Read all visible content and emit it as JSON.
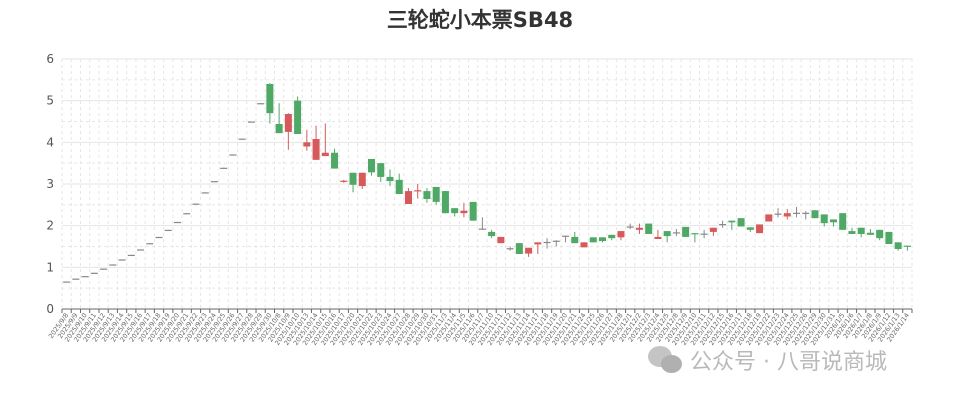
{
  "chart_data": {
    "type": "candlestick",
    "title": "三轮蛇小本票SB48",
    "ylim": [
      0,
      6
    ],
    "yticks": [
      0,
      1,
      2,
      3,
      4,
      5,
      6
    ],
    "grid": true,
    "colors": {
      "up": "#d65a5a",
      "down": "#4fa866",
      "doji": "#888888",
      "grid": "#e6e6e6",
      "axis": "#666666"
    },
    "candle_format": [
      "open",
      "close",
      "low",
      "high"
    ],
    "categories": [
      "2025/9/8",
      "2025/9/9",
      "2025/9/10",
      "2025/9/11",
      "2025/9/12",
      "2025/9/13",
      "2025/9/14",
      "2025/9/15",
      "2025/9/16",
      "2025/9/17",
      "2025/9/18",
      "2025/9/19",
      "2025/9/20",
      "2025/9/21",
      "2025/9/22",
      "2025/9/23",
      "2025/9/24",
      "2025/9/25",
      "2025/9/26",
      "2025/9/27",
      "2025/9/28",
      "2025/9/29",
      "2025/9/30",
      "2025/10/8",
      "2025/10/9",
      "2025/10/10",
      "2025/10/13",
      "2025/10/14",
      "2025/10/15",
      "2025/10/16",
      "2025/10/17",
      "2025/10/20",
      "2025/10/21",
      "2025/10/22",
      "2025/10/23",
      "2025/10/24",
      "2025/10/27",
      "2025/10/28",
      "2025/10/29",
      "2025/10/30",
      "2025/10/31",
      "2025/11/3",
      "2025/11/4",
      "2025/11/5",
      "2025/11/6",
      "2025/11/7",
      "2025/11/10",
      "2025/11/11",
      "2025/11/12",
      "2025/11/13",
      "2025/11/14",
      "2025/11/17",
      "2025/11/18",
      "2025/11/19",
      "2025/11/20",
      "2025/11/21",
      "2025/11/24",
      "2025/11/25",
      "2025/11/26",
      "2025/11/27",
      "2025/11/28",
      "2025/12/1",
      "2025/12/2",
      "2025/12/3",
      "2025/12/4",
      "2025/12/5",
      "2025/12/8",
      "2025/12/9",
      "2025/12/10",
      "2025/12/11",
      "2025/12/12",
      "2025/12/15",
      "2025/12/16",
      "2025/12/17",
      "2025/12/18",
      "2025/12/19",
      "2025/12/22",
      "2025/12/23",
      "2025/12/24",
      "2025/12/25",
      "2025/12/26",
      "2025/12/29",
      "2025/12/30",
      "2025/12/31",
      "2026/1/5",
      "2026/1/6",
      "2026/1/7",
      "2026/1/8",
      "2026/1/9",
      "2026/1/12",
      "2026/1/13",
      "2026/1/14"
    ],
    "values": [
      [
        0.65,
        0.66,
        0.65,
        0.66
      ],
      [
        0.72,
        0.73,
        0.72,
        0.73
      ],
      [
        0.78,
        0.79,
        0.78,
        0.79
      ],
      [
        0.86,
        0.87,
        0.86,
        0.87
      ],
      [
        0.96,
        0.97,
        0.96,
        0.97
      ],
      [
        1.06,
        1.07,
        1.06,
        1.07
      ],
      [
        1.18,
        1.19,
        1.18,
        1.19
      ],
      [
        1.29,
        1.3,
        1.29,
        1.3
      ],
      [
        1.42,
        1.43,
        1.42,
        1.43
      ],
      [
        1.57,
        1.58,
        1.57,
        1.58
      ],
      [
        1.72,
        1.73,
        1.72,
        1.73
      ],
      [
        1.89,
        1.9,
        1.89,
        1.9
      ],
      [
        2.08,
        2.09,
        2.08,
        2.09
      ],
      [
        2.29,
        2.3,
        2.29,
        2.3
      ],
      [
        2.52,
        2.53,
        2.52,
        2.53
      ],
      [
        2.79,
        2.8,
        2.79,
        2.8
      ],
      [
        3.06,
        3.07,
        3.06,
        3.07
      ],
      [
        3.38,
        3.39,
        3.38,
        3.39
      ],
      [
        3.7,
        3.71,
        3.7,
        3.71
      ],
      [
        4.08,
        4.09,
        4.08,
        4.09
      ],
      [
        4.49,
        4.5,
        4.49,
        4.5
      ],
      [
        4.93,
        4.94,
        4.93,
        4.94
      ],
      [
        5.4,
        4.7,
        4.45,
        5.42
      ],
      [
        4.44,
        4.22,
        4.22,
        4.94
      ],
      [
        4.25,
        4.68,
        3.82,
        4.7
      ],
      [
        5.0,
        4.2,
        4.2,
        5.1
      ],
      [
        3.9,
        4.0,
        3.8,
        4.3
      ],
      [
        3.58,
        4.08,
        3.58,
        4.4
      ],
      [
        3.67,
        3.75,
        3.67,
        4.45
      ],
      [
        3.75,
        3.37,
        3.37,
        3.85
      ],
      [
        3.05,
        3.08,
        3.03,
        3.1
      ],
      [
        3.27,
        2.98,
        2.8,
        3.27
      ],
      [
        2.95,
        3.27,
        2.88,
        3.27
      ],
      [
        3.6,
        3.28,
        3.2,
        3.6
      ],
      [
        3.5,
        3.17,
        3.05,
        3.5
      ],
      [
        3.17,
        3.07,
        2.95,
        3.35
      ],
      [
        3.1,
        2.76,
        2.76,
        3.25
      ],
      [
        2.52,
        2.83,
        2.52,
        2.9
      ],
      [
        2.83,
        2.85,
        2.65,
        3.0
      ],
      [
        2.83,
        2.64,
        2.55,
        2.9
      ],
      [
        2.93,
        2.57,
        2.5,
        2.93
      ],
      [
        2.83,
        2.3,
        2.3,
        2.83
      ],
      [
        2.42,
        2.3,
        2.22,
        2.42
      ],
      [
        2.3,
        2.36,
        2.2,
        2.55
      ],
      [
        2.57,
        2.12,
        2.12,
        2.57
      ],
      [
        1.92,
        1.93,
        1.9,
        2.2
      ],
      [
        1.85,
        1.75,
        1.7,
        1.9
      ],
      [
        1.58,
        1.73,
        1.58,
        1.73
      ],
      [
        1.45,
        1.46,
        1.4,
        1.5
      ],
      [
        1.58,
        1.32,
        1.32,
        1.58
      ],
      [
        1.33,
        1.47,
        1.25,
        1.47
      ],
      [
        1.55,
        1.6,
        1.32,
        1.6
      ],
      [
        1.6,
        1.61,
        1.45,
        1.7
      ],
      [
        1.63,
        1.64,
        1.5,
        1.65
      ],
      [
        1.75,
        1.76,
        1.6,
        1.76
      ],
      [
        1.73,
        1.58,
        1.58,
        1.85
      ],
      [
        1.48,
        1.6,
        1.48,
        1.6
      ],
      [
        1.72,
        1.6,
        1.6,
        1.72
      ],
      [
        1.72,
        1.63,
        1.6,
        1.72
      ],
      [
        1.78,
        1.7,
        1.65,
        1.78
      ],
      [
        1.72,
        1.87,
        1.65,
        1.87
      ],
      [
        1.97,
        1.98,
        1.92,
        2.05
      ],
      [
        1.9,
        1.95,
        1.8,
        2.05
      ],
      [
        2.05,
        1.8,
        1.8,
        2.05
      ],
      [
        1.68,
        1.73,
        1.68,
        1.9
      ],
      [
        1.87,
        1.75,
        1.6,
        1.87
      ],
      [
        1.83,
        1.84,
        1.75,
        1.92
      ],
      [
        1.97,
        1.73,
        1.73,
        1.97
      ],
      [
        1.82,
        1.8,
        1.6,
        1.82
      ],
      [
        1.8,
        1.81,
        1.7,
        1.9
      ],
      [
        1.85,
        1.95,
        1.75,
        1.95
      ],
      [
        2.03,
        2.04,
        1.95,
        2.12
      ],
      [
        2.12,
        2.08,
        1.9,
        2.12
      ],
      [
        2.18,
        1.98,
        1.98,
        2.18
      ],
      [
        1.96,
        1.9,
        1.85,
        1.96
      ],
      [
        1.82,
        2.03,
        1.82,
        2.03
      ],
      [
        2.1,
        2.27,
        2.1,
        2.27
      ],
      [
        2.28,
        2.29,
        2.2,
        2.42
      ],
      [
        2.22,
        2.3,
        2.15,
        2.4
      ],
      [
        2.3,
        2.31,
        2.2,
        2.45
      ],
      [
        2.3,
        2.31,
        2.15,
        2.35
      ],
      [
        2.37,
        2.18,
        2.18,
        2.37
      ],
      [
        2.27,
        2.06,
        1.98,
        2.27
      ],
      [
        2.15,
        2.08,
        1.98,
        2.15
      ],
      [
        2.3,
        1.9,
        1.9,
        2.3
      ],
      [
        1.87,
        1.8,
        1.8,
        1.95
      ],
      [
        1.95,
        1.8,
        1.72,
        1.95
      ],
      [
        1.83,
        1.78,
        1.78,
        1.92
      ],
      [
        1.9,
        1.7,
        1.65,
        1.9
      ],
      [
        1.85,
        1.56,
        1.56,
        1.85
      ],
      [
        1.6,
        1.44,
        1.4,
        1.6
      ],
      [
        1.52,
        1.5,
        1.4,
        1.52
      ]
    ]
  },
  "watermark": {
    "text": "公众号 · 八哥说商城",
    "icon": "wechat-icon"
  }
}
